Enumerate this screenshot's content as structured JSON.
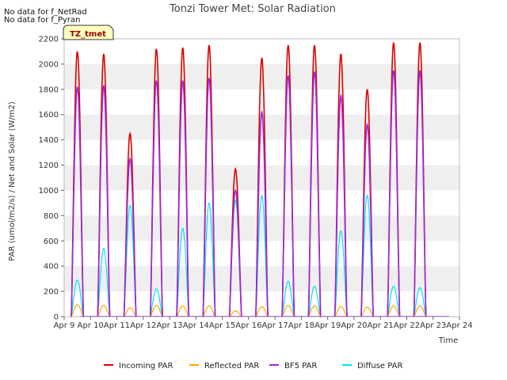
{
  "chart_data": {
    "type": "line",
    "title": "Tonzi Tower Met: Solar Radiation",
    "xlabel": "Time",
    "ylabel": "PAR (umol/m2/s) / Net and Solar (W/m2)",
    "ylim": [
      0,
      2200
    ],
    "xlim": [
      0,
      15
    ],
    "y_ticks": [
      0,
      200,
      400,
      600,
      800,
      1000,
      1200,
      1400,
      1600,
      1800,
      2000,
      2200
    ],
    "x_ticks": [
      "Apr 9",
      "Apr 10",
      "Apr 11",
      "Apr 12",
      "Apr 13",
      "Apr 14",
      "Apr 15",
      "Apr 16",
      "Apr 17",
      "Apr 18",
      "Apr 19",
      "Apr 20",
      "Apr 21",
      "Apr 22",
      "Apr 23",
      "Apr 24"
    ],
    "grid_bands": true,
    "legend_position": "bottom",
    "notes": [
      "No data for f_NetRad",
      "No data for f_Pyran"
    ],
    "badge": "TZ_tmet",
    "series": [
      {
        "name": "Incoming PAR",
        "color": "#dd0000",
        "daily_peaks": [
          2100,
          2080,
          1450,
          2120,
          2130,
          2150,
          1170,
          2050,
          2150,
          2150,
          2080,
          1800,
          2170,
          2170
        ]
      },
      {
        "name": "Reflected PAR",
        "color": "#ffa500",
        "daily_peaks": [
          95,
          90,
          70,
          90,
          85,
          85,
          45,
          80,
          90,
          85,
          80,
          75,
          85,
          85
        ]
      },
      {
        "name": "BF5 PAR",
        "color": "#9a2be2",
        "daily_peaks": [
          1820,
          1830,
          1250,
          1870,
          1870,
          1890,
          1000,
          1620,
          1910,
          1940,
          1750,
          1520,
          1950,
          1950
        ]
      },
      {
        "name": "Diffuse PAR",
        "color": "#00e5ee",
        "daily_peaks": [
          290,
          540,
          880,
          220,
          700,
          900,
          920,
          960,
          280,
          240,
          680,
          960,
          240,
          230
        ]
      }
    ]
  }
}
